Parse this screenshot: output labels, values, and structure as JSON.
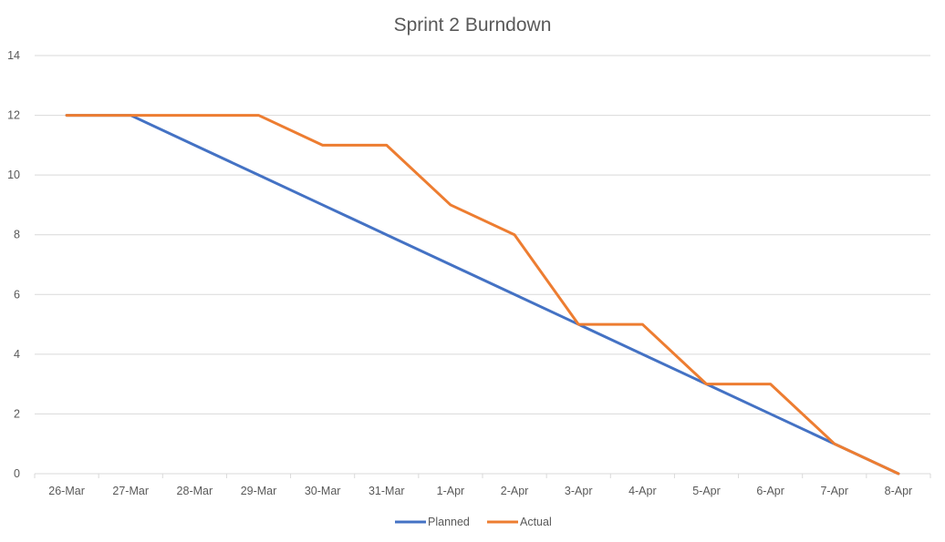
{
  "chart_data": {
    "type": "line",
    "title": "Sprint 2 Burndown",
    "xlabel": "",
    "ylabel": "",
    "categories": [
      "26-Mar",
      "27-Mar",
      "28-Mar",
      "29-Mar",
      "30-Mar",
      "31-Mar",
      "1-Apr",
      "2-Apr",
      "3-Apr",
      "4-Apr",
      "5-Apr",
      "6-Apr",
      "7-Apr",
      "8-Apr"
    ],
    "ylim": [
      0,
      14
    ],
    "yticks": [
      "0",
      "2",
      "4",
      "6",
      "8",
      "10",
      "12",
      "14"
    ],
    "grid": true,
    "legend_position": "bottom",
    "series": [
      {
        "name": "Planned",
        "color": "#4472C4",
        "values": [
          12,
          12,
          11,
          10,
          9,
          8,
          7,
          6,
          5,
          4,
          3,
          2,
          1,
          0
        ]
      },
      {
        "name": "Actual",
        "color": "#ED7D31",
        "values": [
          12,
          12,
          12,
          12,
          11,
          11,
          9,
          8,
          5,
          5,
          3,
          3,
          1,
          0
        ]
      }
    ]
  }
}
